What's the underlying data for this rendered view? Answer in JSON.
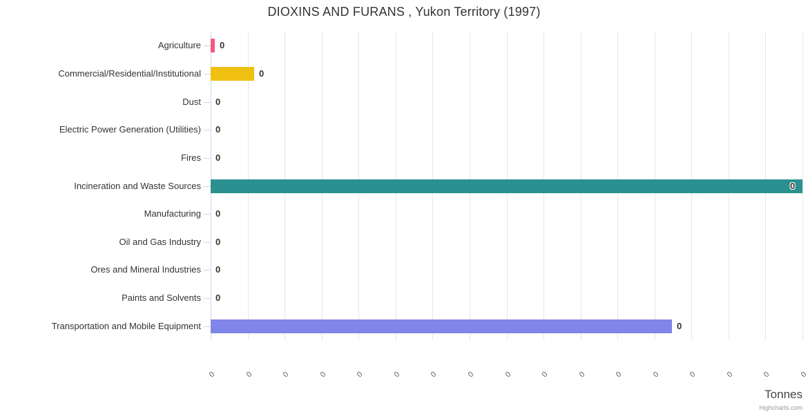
{
  "title": "DIOXINS AND FURANS , Yukon Territory (1997)",
  "credit": "Highcharts.com",
  "x_axis_title": "Tonnes",
  "chart_data": {
    "type": "bar",
    "orientation": "horizontal",
    "title": "DIOXINS AND FURANS , Yukon Territory (1997)",
    "xlabel": "Tonnes",
    "ylabel": "",
    "grid": true,
    "legend": false,
    "categories": [
      "Agriculture",
      "Commercial/Residential/Institutional",
      "Dust",
      "Electric Power Generation (Utilities)",
      "Fires",
      "Incineration and Waste Sources",
      "Manufacturing",
      "Oil and Gas Industry",
      "Ores and Mineral Industries",
      "Paints and Solvents",
      "Transportation and Mobile Equipment"
    ],
    "series": [
      {
        "name": "Tonnes",
        "values_displayed": [
          "0",
          "0",
          "0",
          "0",
          "0",
          "0",
          "0",
          "0",
          "0",
          "0",
          "0"
        ],
        "bar_length_fraction": [
          0.007,
          0.073,
          0,
          0,
          0,
          1.0,
          0,
          0,
          0,
          0,
          0.78
        ],
        "point_colors": [
          "#f15c80",
          "#efc011",
          null,
          null,
          null,
          "#2b908f",
          null,
          null,
          null,
          null,
          "#8085e9"
        ]
      }
    ],
    "x_tick_labels": [
      "0",
      "0",
      "0",
      "0",
      "0",
      "0",
      "0",
      "0",
      "0",
      "0",
      "0",
      "0",
      "0",
      "0",
      "0",
      "0",
      "0"
    ],
    "axis_range_note": "all value-axis ticks display 0"
  },
  "colors": {
    "gridline": "#e6e6e6",
    "axis_line": "#ccd6eb",
    "tick": "#ccd6eb",
    "title_text": "#333333",
    "label_text": "#333333",
    "x_tick_text": "#606060",
    "credit_text": "#999999"
  }
}
